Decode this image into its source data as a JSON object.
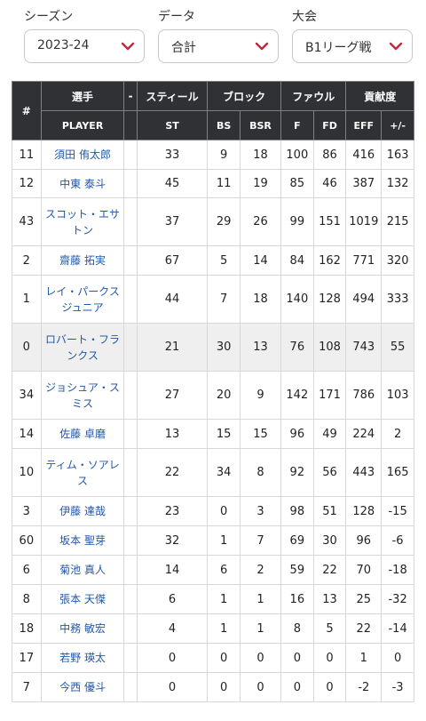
{
  "filters": {
    "season": {
      "label": "シーズン",
      "value": "2023-24"
    },
    "data": {
      "label": "データ",
      "value": "合計"
    },
    "tournament": {
      "label": "大会",
      "value": "B1リーグ戦"
    }
  },
  "table": {
    "header_top": {
      "num": "#",
      "player": "選手",
      "dash": "-",
      "steal": "スティール",
      "block": "ブロック",
      "foul": "ファウル",
      "contribution": "貢献度"
    },
    "header_sub": {
      "player": "PLAYER",
      "st": "ST",
      "bs": "BS",
      "bsr": "BSR",
      "f": "F",
      "fd": "FD",
      "eff": "EFF",
      "pm": "+/-"
    },
    "rows": [
      {
        "num": "11",
        "name": "須田 侑太郎",
        "st": "33",
        "bs": "9",
        "bsr": "18",
        "f": "100",
        "fd": "86",
        "eff": "416",
        "pm": "163"
      },
      {
        "num": "12",
        "name": "中東 泰斗",
        "st": "45",
        "bs": "11",
        "bsr": "19",
        "f": "85",
        "fd": "46",
        "eff": "387",
        "pm": "132"
      },
      {
        "num": "43",
        "name": "スコット・エサトン",
        "st": "37",
        "bs": "29",
        "bsr": "26",
        "f": "99",
        "fd": "151",
        "eff": "1019",
        "pm": "215"
      },
      {
        "num": "2",
        "name": "齋藤 拓実",
        "st": "67",
        "bs": "5",
        "bsr": "14",
        "f": "84",
        "fd": "162",
        "eff": "771",
        "pm": "320"
      },
      {
        "num": "1",
        "name": "レイ・パークスジュニア",
        "st": "44",
        "bs": "7",
        "bsr": "18",
        "f": "140",
        "fd": "128",
        "eff": "494",
        "pm": "333"
      },
      {
        "num": "0",
        "name": "ロバート・フランクス",
        "st": "21",
        "bs": "30",
        "bsr": "13",
        "f": "76",
        "fd": "108",
        "eff": "743",
        "pm": "55"
      },
      {
        "num": "34",
        "name": "ジョシュア・スミス",
        "st": "27",
        "bs": "20",
        "bsr": "9",
        "f": "142",
        "fd": "171",
        "eff": "786",
        "pm": "103"
      },
      {
        "num": "14",
        "name": "佐藤 卓磨",
        "st": "13",
        "bs": "15",
        "bsr": "15",
        "f": "96",
        "fd": "49",
        "eff": "224",
        "pm": "2"
      },
      {
        "num": "10",
        "name": "ティム・ソアレス",
        "st": "22",
        "bs": "34",
        "bsr": "8",
        "f": "92",
        "fd": "56",
        "eff": "443",
        "pm": "165"
      },
      {
        "num": "3",
        "name": "伊藤 達哉",
        "st": "23",
        "bs": "0",
        "bsr": "3",
        "f": "98",
        "fd": "51",
        "eff": "128",
        "pm": "-15"
      },
      {
        "num": "60",
        "name": "坂本 聖芽",
        "st": "32",
        "bs": "1",
        "bsr": "7",
        "f": "69",
        "fd": "30",
        "eff": "96",
        "pm": "-6"
      },
      {
        "num": "6",
        "name": "菊池 真人",
        "st": "14",
        "bs": "6",
        "bsr": "2",
        "f": "59",
        "fd": "22",
        "eff": "70",
        "pm": "-18"
      },
      {
        "num": "8",
        "name": "張本 天傑",
        "st": "6",
        "bs": "1",
        "bsr": "1",
        "f": "16",
        "fd": "13",
        "eff": "25",
        "pm": "-32"
      },
      {
        "num": "18",
        "name": "中務 敏宏",
        "st": "4",
        "bs": "1",
        "bsr": "1",
        "f": "8",
        "fd": "5",
        "eff": "22",
        "pm": "-14"
      },
      {
        "num": "17",
        "name": "若野 瑛太",
        "st": "0",
        "bs": "0",
        "bsr": "0",
        "f": "0",
        "fd": "0",
        "eff": "1",
        "pm": "0"
      },
      {
        "num": "7",
        "name": "今西 優斗",
        "st": "0",
        "bs": "0",
        "bsr": "0",
        "f": "0",
        "fd": "0",
        "eff": "-2",
        "pm": "-3"
      }
    ]
  },
  "icons": {
    "dropdown": "chevron-down-icon"
  },
  "colors": {
    "header_bg": "#2f3135",
    "link": "#2457a5",
    "chevron": "#c0283c",
    "highlight_row": "#efefef"
  }
}
